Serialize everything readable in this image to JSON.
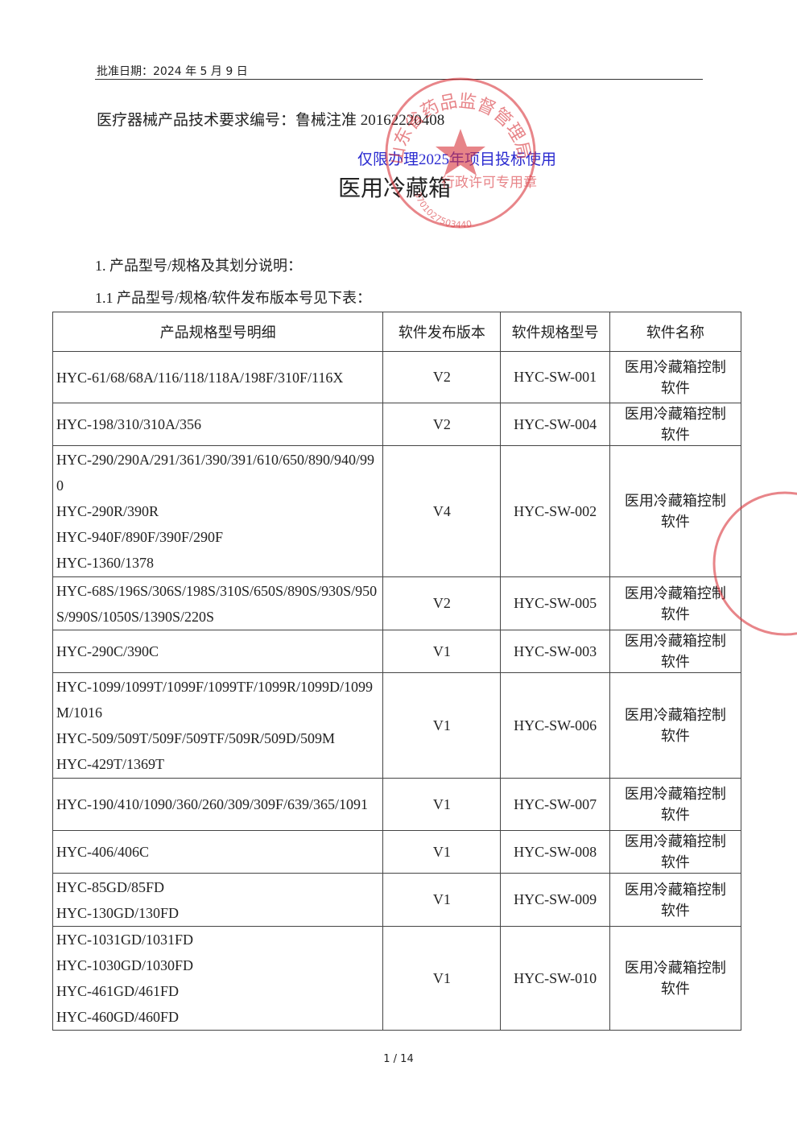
{
  "header": {
    "approval_date": "批准日期：2024 年 5 月 9 日"
  },
  "doc_number": "医疗器械产品技术要求编号：鲁械注准 20162220408",
  "watermark": "仅限办理2025年项目投标使用",
  "title": "医用冷藏箱",
  "seal": {
    "name": "山东省药品监督管理局",
    "purpose": "行政许可专用章",
    "code": "3701027503440"
  },
  "section": "1. 产品型号/规格及其划分说明：",
  "subsection": "1.1 产品型号/规格/软件发布版本号见下表：",
  "table": {
    "headers": [
      "产品规格型号明细",
      "软件发布版本",
      "软件规格型号",
      "软件名称"
    ],
    "rows": [
      {
        "models": [
          "HYC-61/68/68A/116/118/118A/198F/310F/116X"
        ],
        "version": "V2",
        "software_model": "HYC-SW-001",
        "software_name": "医用冷藏箱控制软件"
      },
      {
        "models": [
          "HYC-198/310/310A/356"
        ],
        "version": "V2",
        "software_model": "HYC-SW-004",
        "software_name": "医用冷藏箱控制软件"
      },
      {
        "models": [
          "HYC-290/290A/291/361/390/391/610/650/890/940/990",
          "HYC-290R/390R",
          "HYC-940F/890F/390F/290F",
          "HYC-1360/1378"
        ],
        "version": "V4",
        "software_model": "HYC-SW-002",
        "software_name": "医用冷藏箱控制软件"
      },
      {
        "models": [
          "HYC-68S/196S/306S/198S/310S/650S/890S/930S/950S/990S/1050S/1390S/220S"
        ],
        "version": "V2",
        "software_model": "HYC-SW-005",
        "software_name": "医用冷藏箱控制软件"
      },
      {
        "models": [
          "HYC-290C/390C"
        ],
        "version": "V1",
        "software_model": "HYC-SW-003",
        "software_name": "医用冷藏箱控制软件"
      },
      {
        "models": [
          "HYC-1099/1099T/1099F/1099TF/1099R/1099D/1099M/1016",
          "HYC-509/509T/509F/509TF/509R/509D/509M",
          "HYC-429T/1369T"
        ],
        "version": "V1",
        "software_model": "HYC-SW-006",
        "software_name": "医用冷藏箱控制软件"
      },
      {
        "models": [
          "HYC-190/410/1090/360/260/309/309F/639/365/1091"
        ],
        "version": "V1",
        "software_model": "HYC-SW-007",
        "software_name": "医用冷藏箱控制软件"
      },
      {
        "models": [
          "HYC-406/406C"
        ],
        "version": "V1",
        "software_model": "HYC-SW-008",
        "software_name": "医用冷藏箱控制软件"
      },
      {
        "models": [
          "HYC-85GD/85FD",
          "HYC-130GD/130FD"
        ],
        "version": "V1",
        "software_model": "HYC-SW-009",
        "software_name": "医用冷藏箱控制软件"
      },
      {
        "models": [
          "HYC-1031GD/1031FD",
          "HYC-1030GD/1030FD",
          "HYC-461GD/461FD",
          "HYC-460GD/460FD"
        ],
        "version": "V1",
        "software_model": "HYC-SW-010",
        "software_name": "医用冷藏箱控制软件"
      }
    ]
  },
  "footer": {
    "page": "1 / 14"
  }
}
